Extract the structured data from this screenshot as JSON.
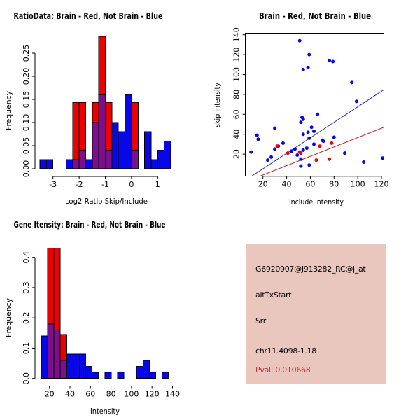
{
  "colors": {
    "hist_red": "#ee0000",
    "hist_blue": "#0707e8",
    "hist_overlap": "#7d0f8c",
    "bar_stroke": "#000000",
    "point_red": "#ee0000",
    "point_blue": "#0707e8",
    "fit_line_blue": "#2424b8",
    "fit_line_red": "#cc2222",
    "info_panel_bg": "#e9c6be",
    "pval_text": "#c03333"
  },
  "panels": {
    "ratio_hist": {
      "title": "RatioData: Brain - Red, Not Brain - Blue",
      "xlabel": "Log2 Ratio Skip/Include",
      "ylabel": "Frequency"
    },
    "scatter": {
      "title": "Brain - Red, Not Brain - Blue",
      "xlabel": "include intensity",
      "ylabel": "skip intensity"
    },
    "gene_hist": {
      "title": "Gene Itensity: Brain - Red, Not Brain - Blue",
      "xlabel": "Intensity",
      "ylabel": "Frequency"
    },
    "info": {
      "probe_id": "G6920907@J913282_RC@j_at",
      "event_type": "altTxStart",
      "gene": "Srr",
      "location": "chr11.4098-1.18",
      "pval": "Pval: 0.010668"
    }
  },
  "chart_data": [
    {
      "id": "ratio_hist",
      "type": "bar",
      "title": "RatioData: Brain - Red, Not Brain - Blue",
      "xlabel": "Log2 Ratio Skip/Include",
      "ylabel": "Frequency",
      "legend": {
        "Brain": "red",
        "Not Brain": "blue"
      },
      "xlim": [
        -3.6,
        1.6
      ],
      "ylim": [
        0,
        0.29
      ],
      "xticks": [
        -3,
        -2,
        -1,
        0,
        1
      ],
      "xtick_labels": [
        "-3",
        "-2",
        "-1",
        "0",
        "1"
      ],
      "yticks": [
        0,
        0.05,
        0.1,
        0.15,
        0.2,
        0.25
      ],
      "ytick_labels": [
        "0.00",
        "0.05",
        "0.10",
        "0.15",
        "0.20",
        "0.25"
      ],
      "bin_width": 0.25,
      "blue_bins": [
        {
          "x0": -3.5,
          "h": 0.02
        },
        {
          "x0": -3.25,
          "h": 0.02
        },
        {
          "x0": -2.5,
          "h": 0.02
        },
        {
          "x0": -2.25,
          "h": 0.02
        },
        {
          "x0": -2.0,
          "h": 0.04
        },
        {
          "x0": -1.75,
          "h": 0.02
        },
        {
          "x0": -1.5,
          "h": 0.1
        },
        {
          "x0": -1.25,
          "h": 0.16
        },
        {
          "x0": -1.0,
          "h": 0.04
        },
        {
          "x0": -0.75,
          "h": 0.1
        },
        {
          "x0": -0.5,
          "h": 0.08
        },
        {
          "x0": -0.25,
          "h": 0.16
        },
        {
          "x0": 0.0,
          "h": 0.04
        },
        {
          "x0": 0.5,
          "h": 0.08
        },
        {
          "x0": 0.75,
          "h": 0.02
        },
        {
          "x0": 1.0,
          "h": 0.04
        },
        {
          "x0": 1.25,
          "h": 0.06
        }
      ],
      "red_bins": [
        {
          "x0": -2.25,
          "h": 0.143
        },
        {
          "x0": -2.0,
          "h": 0.143
        },
        {
          "x0": -1.5,
          "h": 0.143
        },
        {
          "x0": -1.25,
          "h": 0.286
        },
        {
          "x0": -1.0,
          "h": 0.143
        },
        {
          "x0": 0.0,
          "h": 0.143
        }
      ]
    },
    {
      "id": "scatter",
      "type": "scatter",
      "title": "Brain - Red, Not Brain - Blue",
      "xlabel": "include intensity",
      "ylabel": "skip intensity",
      "xlim": [
        5,
        122.5
      ],
      "ylim": [
        -2.5,
        141.5
      ],
      "xticks": [
        20,
        40,
        60,
        80,
        100,
        120
      ],
      "yticks": [
        20,
        40,
        60,
        80,
        100,
        120,
        140
      ],
      "blue_points": [
        [
          51,
          134
        ],
        [
          59,
          120
        ],
        [
          76,
          114
        ],
        [
          79,
          113
        ],
        [
          54,
          105
        ],
        [
          58,
          107
        ],
        [
          95,
          92
        ],
        [
          99,
          73
        ],
        [
          66,
          60
        ],
        [
          53,
          57
        ],
        [
          54,
          55
        ],
        [
          52,
          52
        ],
        [
          61,
          47
        ],
        [
          63,
          43
        ],
        [
          58,
          42
        ],
        [
          54,
          40
        ],
        [
          30,
          46
        ],
        [
          59,
          36
        ],
        [
          70,
          34
        ],
        [
          37,
          31
        ],
        [
          16,
          35
        ],
        [
          80,
          37
        ],
        [
          63,
          30
        ],
        [
          71,
          33
        ],
        [
          30,
          25
        ],
        [
          33,
          28
        ],
        [
          47,
          25
        ],
        [
          44,
          23
        ],
        [
          54,
          24
        ],
        [
          57,
          26
        ],
        [
          49,
          19
        ],
        [
          52,
          15
        ],
        [
          52,
          8
        ],
        [
          59,
          9
        ],
        [
          89,
          21
        ],
        [
          10,
          22
        ],
        [
          24,
          14
        ],
        [
          27,
          17
        ],
        [
          105,
          12
        ],
        [
          121,
          16
        ],
        [
          15,
          39
        ]
      ],
      "red_points": [
        [
          32,
          28
        ],
        [
          41,
          21
        ],
        [
          51,
          22
        ],
        [
          52,
          21
        ],
        [
          65,
          14
        ],
        [
          68,
          28
        ],
        [
          76,
          15
        ],
        [
          78,
          31
        ]
      ],
      "blue_line": {
        "x1": 10.3,
        "y1": -2.3,
        "x2": 122,
        "y2": 84.7
      },
      "red_line": {
        "x1": 17.2,
        "y1": -2.3,
        "x2": 122,
        "y2": 47
      }
    },
    {
      "id": "gene_hist",
      "type": "bar",
      "title": "Gene Itensity: Brain - Red, Not Brain - Blue",
      "xlabel": "Intensity",
      "ylabel": "Frequency",
      "legend": {
        "Brain": "red",
        "Not Brain": "blue"
      },
      "xlim": [
        10,
        142
      ],
      "ylim": [
        0,
        0.44
      ],
      "xticks": [
        20,
        40,
        60,
        80,
        100,
        120,
        140
      ],
      "xtick_labels": [
        "20",
        "40",
        "60",
        "80",
        "100",
        "120",
        "140"
      ],
      "yticks": [
        0,
        0.1,
        0.2,
        0.3,
        0.4
      ],
      "ytick_labels": [
        "0.0",
        "0.1",
        "0.2",
        "0.3",
        "0.4"
      ],
      "bin_width": 6.2,
      "blue_bins": [
        {
          "x0": 12.0,
          "h": 0.14
        },
        {
          "x0": 18.2,
          "h": 0.18
        },
        {
          "x0": 24.4,
          "h": 0.16
        },
        {
          "x0": 30.6,
          "h": 0.06
        },
        {
          "x0": 36.8,
          "h": 0.08
        },
        {
          "x0": 43.0,
          "h": 0.08
        },
        {
          "x0": 49.2,
          "h": 0.08
        },
        {
          "x0": 55.4,
          "h": 0.04
        },
        {
          "x0": 61.6,
          "h": 0.02
        },
        {
          "x0": 74.0,
          "h": 0.02
        },
        {
          "x0": 86.4,
          "h": 0.02
        },
        {
          "x0": 105.0,
          "h": 0.04
        },
        {
          "x0": 111.2,
          "h": 0.06
        },
        {
          "x0": 117.4,
          "h": 0.02
        },
        {
          "x0": 129.8,
          "h": 0.02
        }
      ],
      "red_bins": [
        {
          "x0": 18.2,
          "h": 0.43
        },
        {
          "x0": 24.4,
          "h": 0.43
        },
        {
          "x0": 30.6,
          "h": 0.145
        }
      ]
    }
  ]
}
